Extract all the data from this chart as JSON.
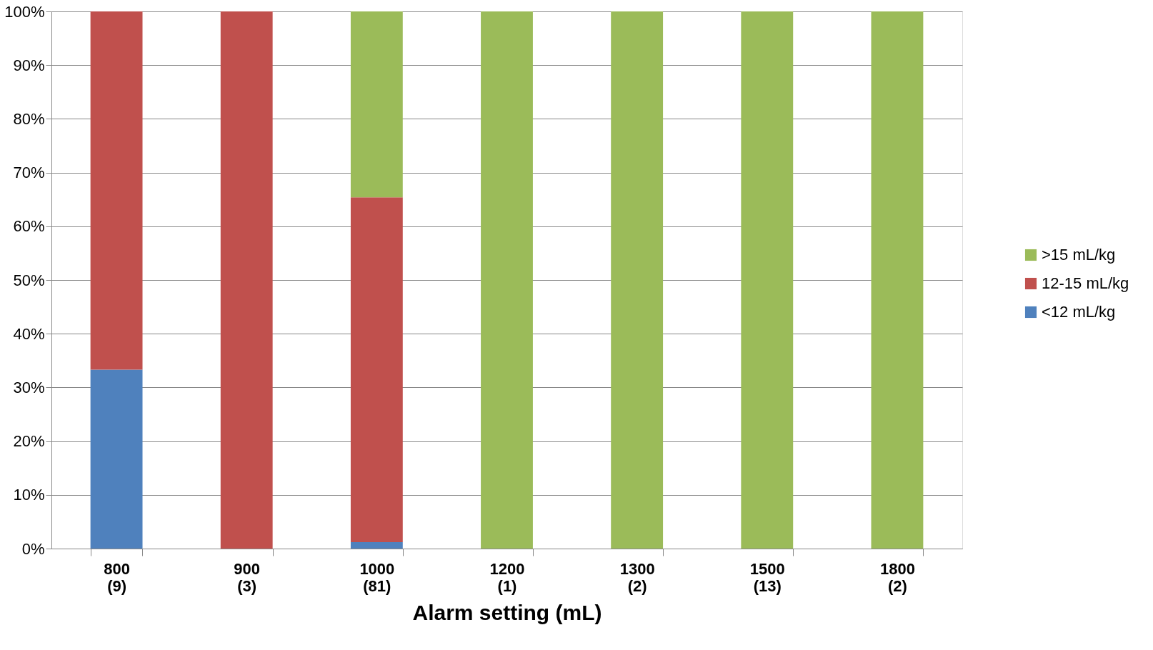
{
  "chart_data": {
    "type": "bar",
    "stacked": true,
    "xlabel": "Alarm setting (mL)",
    "categories": [
      "800\n(9)",
      "900\n(3)",
      "1000\n(81)",
      "1200\n(1)",
      "1300\n(2)",
      "1500\n(13)",
      "1800\n(2)"
    ],
    "series": [
      {
        "name": "<12 mL/kg",
        "color": "#4f81bd",
        "values": [
          33.3,
          0,
          1.2,
          0,
          0,
          0,
          0
        ]
      },
      {
        "name": "12-15 mL/kg",
        "color": "#c0504d",
        "values": [
          66.7,
          100,
          64.2,
          0,
          0,
          0,
          0
        ]
      },
      {
        "name": ">15 mL/kg",
        "color": "#9bbb59",
        "values": [
          0,
          0,
          34.6,
          100,
          100,
          100,
          100
        ]
      }
    ],
    "ylim": [
      0,
      100
    ],
    "yticks": [
      {
        "value": 0,
        "label": "0%"
      },
      {
        "value": 10,
        "label": "10%"
      },
      {
        "value": 20,
        "label": "20%"
      },
      {
        "value": 30,
        "label": "30%"
      },
      {
        "value": 40,
        "label": "40%"
      },
      {
        "value": 50,
        "label": "50%"
      },
      {
        "value": 60,
        "label": "60%"
      },
      {
        "value": 70,
        "label": "70%"
      },
      {
        "value": 80,
        "label": "80%"
      },
      {
        "value": 90,
        "label": "90%"
      },
      {
        "value": 100,
        "label": "100%"
      }
    ],
    "grid": "y",
    "legend": "right"
  }
}
